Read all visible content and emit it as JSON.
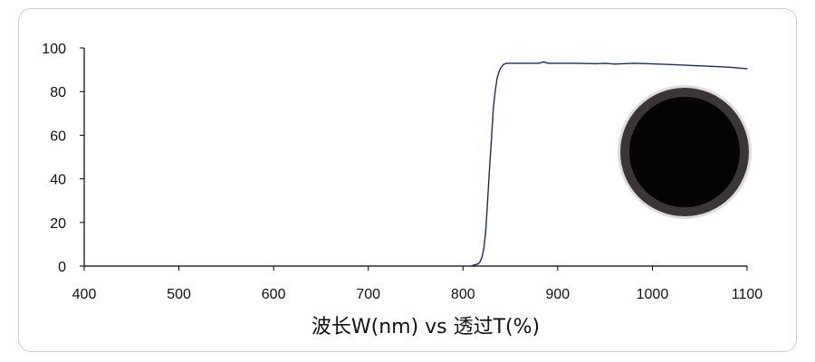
{
  "chart_data": {
    "type": "line",
    "xlabel": "波长W(nm) vs 透过T(%)",
    "ylabel": "",
    "xlim": [
      400,
      1100
    ],
    "ylim": [
      0,
      100
    ],
    "x_ticks": [
      400,
      500,
      600,
      700,
      800,
      900,
      1000,
      1100
    ],
    "y_ticks": [
      0,
      20,
      40,
      60,
      80,
      100
    ],
    "grid": false,
    "legend": "none",
    "series": [
      {
        "color": "#1f2d5a",
        "x": [
          808,
          812,
          816,
          818,
          820,
          822,
          824,
          826,
          828,
          830,
          832,
          834,
          836,
          838,
          840,
          843,
          846,
          850,
          860,
          880,
          885,
          890,
          900,
          920,
          940,
          950,
          960,
          980,
          1000,
          1020,
          1040,
          1060,
          1080,
          1100
        ],
        "y": [
          0,
          0.5,
          1,
          2,
          4,
          8,
          16,
          30,
          45,
          58,
          72,
          80,
          86,
          89,
          91,
          92.5,
          93,
          93,
          93,
          93,
          93.6,
          93,
          93,
          93,
          92.8,
          93,
          92.6,
          93,
          92.7,
          92.4,
          92,
          91.6,
          91.2,
          90.5
        ]
      }
    ]
  },
  "product_image": {
    "name": "filter-disc",
    "rim_color": "#3a3536",
    "glass_color": "#050303"
  }
}
